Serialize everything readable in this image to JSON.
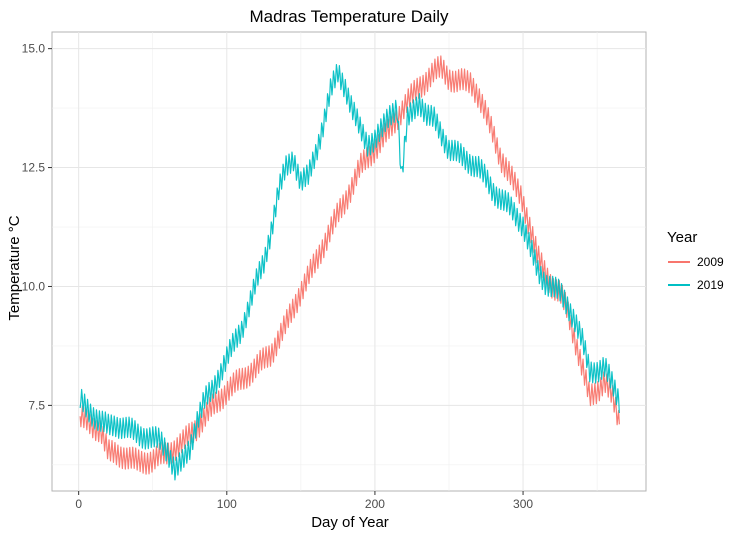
{
  "chart_data": {
    "type": "line",
    "title": "Madras Temperature Daily",
    "xlabel": "Day of Year",
    "ylabel": "Temperature °C",
    "xlim": [
      -18,
      383
    ],
    "ylim": [
      5.7,
      15.35
    ],
    "xticks": [
      0,
      100,
      200,
      300
    ],
    "yticks": [
      7.5,
      10.0,
      12.5,
      15.0
    ],
    "ytick_labels": [
      "7.5",
      "10.0",
      "12.5",
      "15.0"
    ],
    "xtick_labels": [
      "0",
      "100",
      "200",
      "300"
    ],
    "grid": true,
    "legend": {
      "title": "Year",
      "position": "right"
    },
    "series": [
      {
        "name": "2009",
        "color": "#F8766D",
        "points": [
          [
            1,
            7.25
          ],
          [
            10,
            7.05
          ],
          [
            15,
            7.0
          ],
          [
            20,
            6.5
          ],
          [
            30,
            6.45
          ],
          [
            40,
            6.3
          ],
          [
            50,
            6.35
          ],
          [
            60,
            6.5
          ],
          [
            70,
            6.7
          ],
          [
            80,
            7.05
          ],
          [
            90,
            7.45
          ],
          [
            100,
            7.8
          ],
          [
            110,
            8.05
          ],
          [
            120,
            8.3
          ],
          [
            130,
            8.6
          ],
          [
            140,
            9.2
          ],
          [
            150,
            9.9
          ],
          [
            160,
            10.5
          ],
          [
            170,
            11.2
          ],
          [
            180,
            11.8
          ],
          [
            190,
            12.5
          ],
          [
            200,
            12.9
          ],
          [
            210,
            13.3
          ],
          [
            220,
            13.8
          ],
          [
            230,
            14.2
          ],
          [
            240,
            14.5
          ],
          [
            245,
            14.6
          ],
          [
            250,
            14.4
          ],
          [
            255,
            14.3
          ],
          [
            260,
            14.3
          ],
          [
            265,
            14.3
          ],
          [
            270,
            14.0
          ],
          [
            275,
            13.6
          ],
          [
            280,
            13.2
          ],
          [
            285,
            12.7
          ],
          [
            290,
            12.4
          ],
          [
            295,
            12.1
          ],
          [
            299,
            11.9
          ],
          [
            305,
            11.2
          ],
          [
            310,
            10.6
          ],
          [
            315,
            10.3
          ],
          [
            320,
            10.0
          ],
          [
            325,
            9.85
          ],
          [
            330,
            9.5
          ],
          [
            335,
            8.9
          ],
          [
            340,
            8.3
          ],
          [
            345,
            7.65
          ],
          [
            350,
            7.8
          ],
          [
            355,
            8.05
          ],
          [
            360,
            7.7
          ],
          [
            365,
            7.1
          ]
        ]
      },
      {
        "name": "2019",
        "color": "#00BFC4",
        "points": [
          [
            1,
            7.6
          ],
          [
            5,
            7.45
          ],
          [
            10,
            7.3
          ],
          [
            15,
            7.15
          ],
          [
            20,
            7.05
          ],
          [
            25,
            7.1
          ],
          [
            30,
            7.05
          ],
          [
            40,
            6.9
          ],
          [
            50,
            6.8
          ],
          [
            55,
            6.75
          ],
          [
            60,
            6.55
          ],
          [
            65,
            6.15
          ],
          [
            70,
            6.3
          ],
          [
            75,
            6.6
          ],
          [
            80,
            7.2
          ],
          [
            85,
            7.6
          ],
          [
            90,
            7.8
          ],
          [
            95,
            8.15
          ],
          [
            100,
            8.5
          ],
          [
            105,
            8.8
          ],
          [
            110,
            9.1
          ],
          [
            115,
            9.6
          ],
          [
            120,
            10.1
          ],
          [
            125,
            10.5
          ],
          [
            130,
            11.2
          ],
          [
            135,
            12.0
          ],
          [
            140,
            12.5
          ],
          [
            145,
            12.7
          ],
          [
            150,
            12.2
          ],
          [
            155,
            12.3
          ],
          [
            160,
            12.8
          ],
          [
            165,
            13.4
          ],
          [
            170,
            14.1
          ],
          [
            175,
            14.5
          ],
          [
            180,
            14.2
          ],
          [
            185,
            13.7
          ],
          [
            190,
            13.3
          ],
          [
            195,
            13.0
          ],
          [
            200,
            13.1
          ],
          [
            205,
            13.3
          ],
          [
            210,
            13.6
          ],
          [
            215,
            13.8
          ],
          [
            218,
            12.3
          ],
          [
            222,
            13.5
          ],
          [
            230,
            13.9
          ],
          [
            235,
            13.6
          ],
          [
            240,
            13.5
          ],
          [
            250,
            12.9
          ],
          [
            260,
            12.7
          ],
          [
            270,
            12.5
          ],
          [
            280,
            12.0
          ],
          [
            290,
            11.7
          ],
          [
            300,
            11.3
          ],
          [
            305,
            10.8
          ],
          [
            310,
            10.3
          ],
          [
            315,
            10.1
          ],
          [
            320,
            10.0
          ],
          [
            325,
            9.85
          ],
          [
            330,
            9.6
          ],
          [
            335,
            9.3
          ],
          [
            340,
            8.85
          ],
          [
            345,
            8.2
          ],
          [
            350,
            8.25
          ],
          [
            355,
            8.3
          ],
          [
            360,
            7.95
          ],
          [
            365,
            7.6
          ]
        ]
      }
    ]
  }
}
